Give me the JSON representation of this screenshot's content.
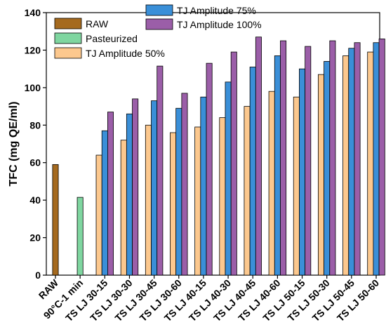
{
  "chart_data": {
    "type": "bar",
    "title": "",
    "xlabel": "",
    "ylabel": "TFC (mg QE/ml)",
    "ylim": [
      0,
      140
    ],
    "yticks": [
      "0",
      "20",
      "40",
      "60",
      "80",
      "100",
      "120",
      "140"
    ],
    "grid": false,
    "legend_position": "top-left",
    "categories": [
      "RAW",
      "90°C-1 min",
      "TS LJ 30-15",
      "TS LJ 30-30",
      "TS LJ 30-45",
      "TS LJ 30-60",
      "TS LJ 40-15",
      "TS LJ 40-30",
      "TS LJ 40-45",
      "TS LJ 40-60",
      "TS LJ 50-15",
      "TS LJ 50-30",
      "TS LJ 50-45",
      "TS LJ 50-60"
    ],
    "series": [
      {
        "name": "RAW",
        "color": "#a56a1f",
        "values": [
          59,
          null,
          null,
          null,
          null,
          null,
          null,
          null,
          null,
          null,
          null,
          null,
          null,
          null
        ]
      },
      {
        "name": "Pasteurized",
        "color": "#7fd6a0",
        "values": [
          null,
          41.5,
          null,
          null,
          null,
          null,
          null,
          null,
          null,
          null,
          null,
          null,
          null,
          null
        ]
      },
      {
        "name": "TJ Amplitude 50%",
        "color": "#fcc88e",
        "values": [
          null,
          null,
          64,
          72,
          80,
          76,
          79,
          84,
          90,
          98,
          95,
          107,
          117,
          119
        ]
      },
      {
        "name": "TJ Amplitude 75%",
        "color": "#3a8fd8",
        "values": [
          null,
          null,
          77,
          86,
          93,
          89,
          95,
          103,
          111,
          117,
          110,
          114,
          121,
          124
        ]
      },
      {
        "name": "TJ Amplitude 100%",
        "color": "#9b5ea8",
        "values": [
          null,
          null,
          87,
          94,
          111.5,
          97,
          113,
          119,
          127,
          125,
          122,
          125,
          124,
          126
        ]
      }
    ]
  }
}
